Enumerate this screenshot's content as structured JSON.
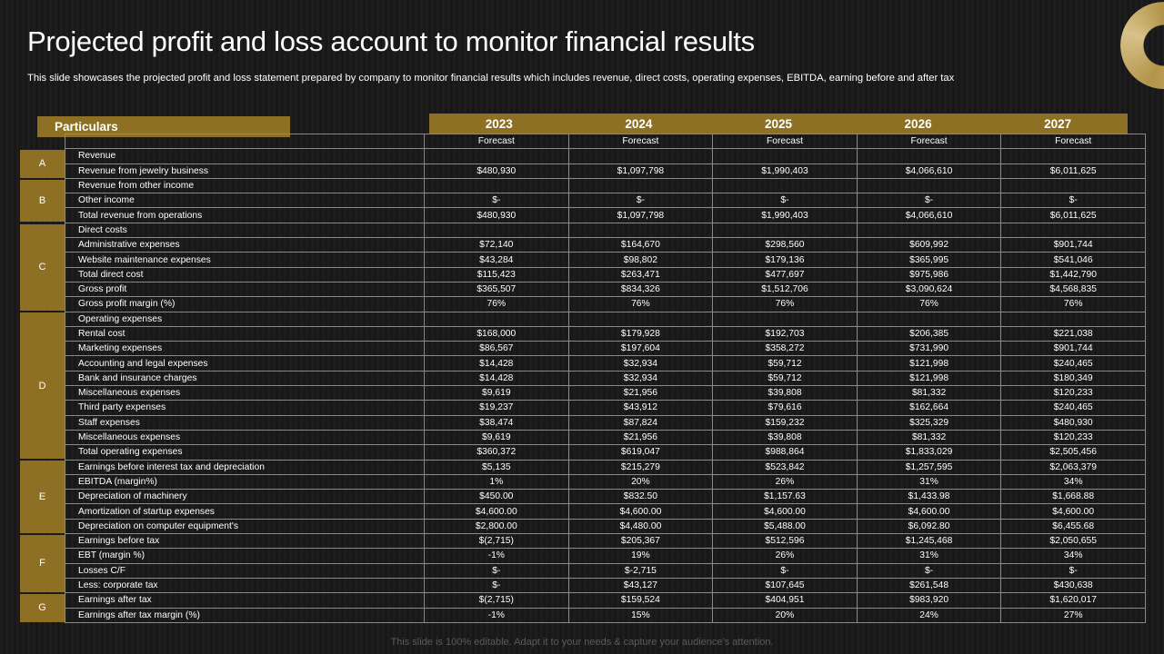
{
  "slide": {
    "title": "Projected profit and loss account to monitor financial results",
    "subtitle": "This slide showcases the projected profit and loss statement prepared by company to monitor financial results which includes revenue, direct costs, operating expenses, EBITDA, earning before and after tax",
    "footer": "This slide is 100% editable. Adapt it to your needs & capture your audience’s attention."
  },
  "colors": {
    "accent_gold": "#8e7024",
    "background": "#1b1b1b",
    "text": "#ffffff",
    "grid": "#8a8a8a"
  },
  "table": {
    "particulars_label": "Particulars",
    "years": [
      "2023",
      "2024",
      "2025",
      "2026",
      "2027"
    ],
    "forecast_label": "Forecast",
    "sections": [
      {
        "label": "A",
        "rows": 2
      },
      {
        "label": "B",
        "rows": 3
      },
      {
        "label": "C",
        "rows": 6
      },
      {
        "label": "D",
        "rows": 10
      },
      {
        "label": "E",
        "rows": 5
      },
      {
        "label": "F",
        "rows": 4
      },
      {
        "label": "G",
        "rows": 2
      }
    ],
    "rows": [
      {
        "label": "Revenue",
        "values": [
          "",
          "",
          "",
          "",
          ""
        ]
      },
      {
        "label": "Revenue from jewelry business",
        "values": [
          "$480,930",
          "$1,097,798",
          "$1,990,403",
          "$4,066,610",
          "$6,011,625"
        ]
      },
      {
        "label": "Revenue from other income",
        "values": [
          "",
          "",
          "",
          "",
          ""
        ]
      },
      {
        "label": "Other income",
        "values": [
          "$-",
          "$-",
          "$-",
          "$-",
          "$-"
        ]
      },
      {
        "label": "Total revenue from operations",
        "values": [
          "$480,930",
          "$1,097,798",
          "$1,990,403",
          "$4,066,610",
          "$6,011,625"
        ]
      },
      {
        "label": "Direct costs",
        "values": [
          "",
          "",
          "",
          "",
          ""
        ]
      },
      {
        "label": "Administrative expenses",
        "values": [
          "$72,140",
          "$164,670",
          "$298,560",
          "$609,992",
          "$901,744"
        ]
      },
      {
        "label": "Website maintenance expenses",
        "values": [
          "$43,284",
          "$98,802",
          "$179,136",
          "$365,995",
          "$541,046"
        ]
      },
      {
        "label": " Total direct cost",
        "values": [
          "$115,423",
          "$263,471",
          "$477,697",
          "$975,986",
          "$1,442,790"
        ]
      },
      {
        "label": "Gross profit",
        "values": [
          "$365,507",
          "$834,326",
          "$1,512,706",
          "$3,090,624",
          "$4,568,835"
        ]
      },
      {
        "label": "Gross profit margin (%)",
        "values": [
          "76%",
          "76%",
          "76%",
          "76%",
          "76%"
        ]
      },
      {
        "label": "Operating expenses",
        "values": [
          "",
          "",
          "",
          "",
          ""
        ]
      },
      {
        "label": "Rental cost",
        "values": [
          "$168,000",
          "$179,928",
          "$192,703",
          "$206,385",
          "$221,038"
        ]
      },
      {
        "label": "Marketing expenses",
        "values": [
          "$86,567",
          "$197,604",
          "$358,272",
          "$731,990",
          "$901,744"
        ]
      },
      {
        "label": "Accounting and legal expenses",
        "values": [
          "$14,428",
          "$32,934",
          "$59,712",
          "$121,998",
          "$240,465"
        ]
      },
      {
        "label": "Bank and insurance charges",
        "values": [
          "$14,428",
          "$32,934",
          "$59,712",
          "$121,998",
          "$180,349"
        ]
      },
      {
        "label": "Miscellaneous expenses",
        "values": [
          "$9,619",
          "$21,956",
          "$39,808",
          "$81,332",
          "$120,233"
        ]
      },
      {
        "label": "Third party expenses",
        "values": [
          "$19,237",
          "$43,912",
          "$79,616",
          "$162,664",
          "$240,465"
        ]
      },
      {
        "label": "Staff expenses",
        "values": [
          "$38,474",
          "$87,824",
          "$159,232",
          "$325,329",
          "$480,930"
        ]
      },
      {
        "label": "Miscellaneous expenses",
        "values": [
          "$9,619",
          "$21,956",
          "$39,808",
          "$81,332",
          "$120,233"
        ]
      },
      {
        "label": "Total operating expenses",
        "values": [
          "$360,372",
          "$619,047",
          "$988,864",
          "$1,833,029",
          "$2,505,456"
        ]
      },
      {
        "label": "Earnings before interest tax and depreciation",
        "values": [
          "$5,135",
          "$215,279",
          "$523,842",
          "$1,257,595",
          "$2,063,379"
        ]
      },
      {
        "label": "EBITDA  (margin%)",
        "values": [
          "1%",
          "20%",
          "26%",
          "31%",
          "34%"
        ]
      },
      {
        "label": "Depreciation of machinery",
        "values": [
          "$450.00",
          "$832.50",
          "$1,157.63",
          "$1,433.98",
          "$1,668.88"
        ]
      },
      {
        "label": "Amortization of startup expenses",
        "values": [
          "$4,600.00",
          "$4,600.00",
          "$4,600.00",
          "$4,600.00",
          "$4,600.00"
        ]
      },
      {
        "label": "Depreciation on computer equipment's",
        "values": [
          "$2,800.00",
          "$4,480.00",
          "$5,488.00",
          "$6,092.80",
          "$6,455.68"
        ]
      },
      {
        "label": "Earnings before tax",
        "values": [
          "$(2,715)",
          "$205,367",
          "$512,596",
          "$1,245,468",
          "$2,050,655"
        ]
      },
      {
        "label": "EBT  (margin %)",
        "values": [
          "-1%",
          "19%",
          "26%",
          "31%",
          "34%"
        ]
      },
      {
        "label": "Losses C/F",
        "values": [
          "$-",
          "$-2,715",
          "$-",
          "$-",
          "$-"
        ]
      },
      {
        "label": "Less: corporate tax",
        "values": [
          "$-",
          "$43,127",
          "$107,645",
          "$261,548",
          "$430,638"
        ]
      },
      {
        "label": "Earnings after tax",
        "values": [
          "$(2,715)",
          "$159,524",
          "$404,951",
          "$983,920",
          "$1,620,017"
        ]
      },
      {
        "label": "Earnings after tax margin  (%)",
        "values": [
          "-1%",
          "15%",
          "20%",
          "24%",
          "27%"
        ]
      }
    ]
  }
}
